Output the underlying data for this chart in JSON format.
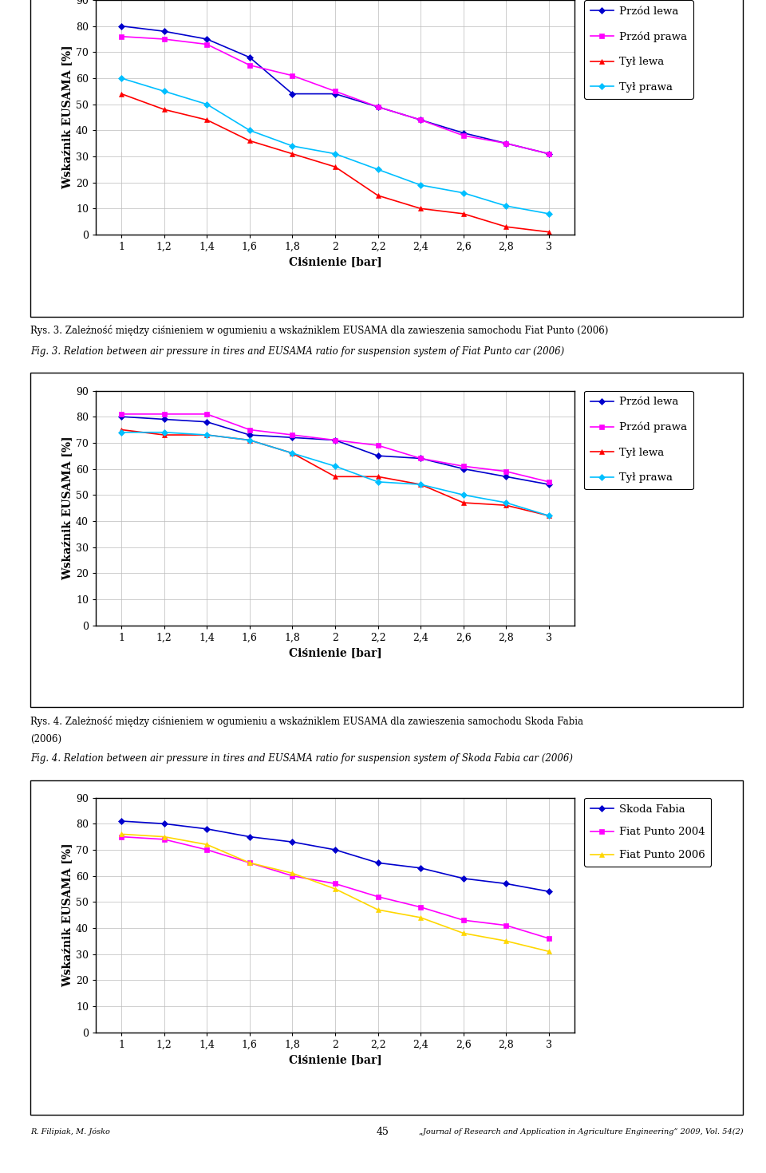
{
  "x_ticks": [
    1,
    1.2,
    1.4,
    1.6,
    1.8,
    2,
    2.2,
    2.4,
    2.6,
    2.8,
    3
  ],
  "x_tick_labels": [
    "1",
    "1,2",
    "1,4",
    "1,6",
    "1,8",
    "2",
    "2,2",
    "2,4",
    "2,6",
    "2,8",
    "3"
  ],
  "ylabel": "Wskaźnik EUSAMA [%]",
  "xlabel": "Ciśnienie [bar]",
  "chart1": {
    "series": [
      {
        "label": "Przód lewa",
        "color": "#0000CD",
        "marker": "D",
        "values": [
          80,
          78,
          75,
          68,
          54,
          54,
          49,
          44,
          39,
          35,
          31
        ]
      },
      {
        "label": "Przód prawa",
        "color": "#FF00FF",
        "marker": "s",
        "values": [
          76,
          75,
          73,
          65,
          61,
          55,
          49,
          44,
          38,
          35,
          31
        ]
      },
      {
        "label": "Tył lewa",
        "color": "#FF0000",
        "marker": "^",
        "values": [
          54,
          48,
          44,
          36,
          31,
          26,
          15,
          10,
          8,
          3,
          1
        ]
      },
      {
        "label": "Tył prawa",
        "color": "#00BFFF",
        "marker": "D",
        "values": [
          60,
          55,
          50,
          40,
          34,
          31,
          25,
          19,
          16,
          11,
          8
        ]
      }
    ]
  },
  "chart2": {
    "series": [
      {
        "label": "Przód lewa",
        "color": "#0000CD",
        "marker": "D",
        "values": [
          80,
          79,
          78,
          73,
          72,
          71,
          65,
          64,
          60,
          57,
          54
        ]
      },
      {
        "label": "Przód prawa",
        "color": "#FF00FF",
        "marker": "s",
        "values": [
          81,
          81,
          81,
          75,
          73,
          71,
          69,
          64,
          61,
          59,
          55
        ]
      },
      {
        "label": "Tył lewa",
        "color": "#FF0000",
        "marker": "^",
        "values": [
          75,
          73,
          73,
          71,
          66,
          57,
          57,
          54,
          47,
          46,
          42
        ]
      },
      {
        "label": "Tył prawa",
        "color": "#00BFFF",
        "marker": "D",
        "values": [
          74,
          74,
          73,
          71,
          66,
          61,
          55,
          54,
          50,
          47,
          42
        ]
      }
    ]
  },
  "chart3": {
    "series": [
      {
        "label": "Skoda Fabia",
        "color": "#0000CD",
        "marker": "D",
        "values": [
          81,
          80,
          78,
          75,
          73,
          70,
          65,
          63,
          59,
          57,
          54
        ]
      },
      {
        "label": "Fiat Punto 2004",
        "color": "#FF00FF",
        "marker": "s",
        "values": [
          75,
          74,
          70,
          65,
          60,
          57,
          52,
          48,
          43,
          41,
          36
        ]
      },
      {
        "label": "Fiat Punto 2006",
        "color": "#FFD700",
        "marker": "^",
        "values": [
          76,
          75,
          72,
          65,
          61,
          55,
          47,
          44,
          38,
          35,
          31
        ]
      }
    ]
  },
  "cap1_line1": "Rys. 3. Zależność między ciśnieniem w ogumieniu a wskaźniklem EUSAMA dla zawieszenia samochodu Fiat Punto (2006)",
  "cap1_line2": "Fig. 3. Relation between air pressure in tires and EUSAMA ratio for suspension system of Fiat Punto car (2006)",
  "cap2_line1": "Rys. 4. Zależność między ciśnieniem w ogumieniu a wskaźniklem EUSAMA dla zawieszenia samochodu Skoda Fabia",
  "cap2_line1b": "(2006)",
  "cap2_line2": "Fig. 4. Relation between air pressure in tires and EUSAMA ratio for suspension system of Skoda Fabia car (2006)",
  "footer_left": "R. Filipiak, M. Jósko",
  "footer_center": "45",
  "footer_right": "„Journal of Research and Application in Agriculture Engineering” 2009, Vol. 54(2)",
  "ylim": [
    0,
    90
  ],
  "yticks": [
    0,
    10,
    20,
    30,
    40,
    50,
    60,
    70,
    80,
    90
  ],
  "bg_color": "#ffffff",
  "grid_color": "#bbbbbb",
  "axis_label_fontsize": 10,
  "tick_fontsize": 9,
  "legend_fontsize": 9.5,
  "caption_fontsize": 8.5
}
